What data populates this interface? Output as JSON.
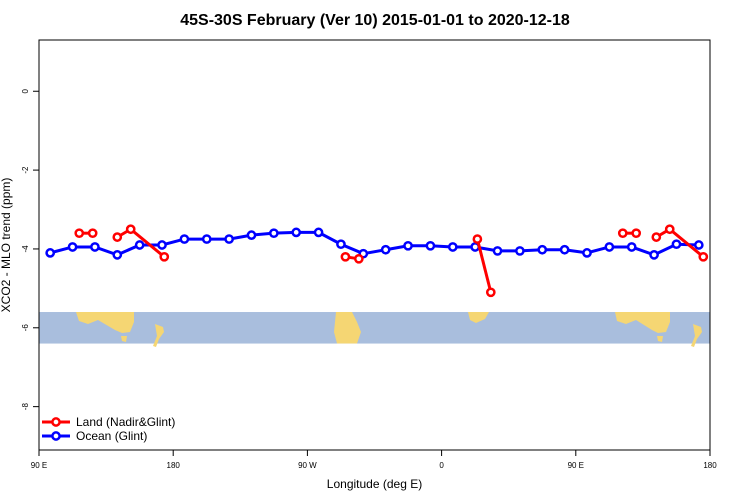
{
  "chart_data": {
    "type": "line",
    "title": "45S-30S February (Ver 10)   2015-01-01 to 2020-12-18",
    "xlabel": "Longitude (deg E)",
    "ylabel": "XCO2 - MLO trend (ppm)",
    "xlim": [
      90,
      390
    ],
    "ylim": [
      -9.1,
      1.3
    ],
    "x_ticks": [
      {
        "value": 90,
        "label": "90 E"
      },
      {
        "value": 150,
        "label": "180"
      },
      {
        "value": 210,
        "label": "90 W"
      },
      {
        "value": 270,
        "label": "0"
      },
      {
        "value": 330,
        "label": "90 E"
      },
      {
        "value": 390,
        "label": "180"
      }
    ],
    "y_ticks": [
      {
        "value": 0,
        "label": "0"
      },
      {
        "value": -2,
        "label": "-2"
      },
      {
        "value": -4,
        "label": "-4"
      },
      {
        "value": -6,
        "label": "-6"
      },
      {
        "value": -8,
        "label": "-8"
      }
    ],
    "series": [
      {
        "name": "Land (Nadir&Glint)",
        "color": "#ff0000",
        "segments": [
          [
            [
              108,
              -3.6
            ],
            [
              114,
              -3.6
            ]
          ],
          [
            [
              125,
              -3.7
            ],
            [
              131,
              -3.5
            ],
            [
              146,
              -4.2
            ]
          ],
          [
            [
              227,
              -4.2
            ],
            [
              233,
              -4.25
            ]
          ],
          [
            [
              286,
              -3.75
            ],
            [
              292,
              -5.1
            ]
          ],
          [
            [
              351,
              -3.6
            ],
            [
              357,
              -3.6
            ]
          ],
          [
            [
              366,
              -3.7
            ],
            [
              372,
              -3.5
            ],
            [
              387,
              -4.2
            ]
          ]
        ]
      },
      {
        "name": "Ocean (Glint)",
        "color": "#0000ff",
        "segments": [
          [
            [
              95,
              -4.1
            ],
            [
              105,
              -3.95
            ],
            [
              115,
              -3.95
            ],
            [
              125,
              -4.15
            ],
            [
              135,
              -3.9
            ],
            [
              145,
              -3.9
            ],
            [
              155,
              -3.75
            ],
            [
              165,
              -3.75
            ],
            [
              175,
              -3.75
            ],
            [
              185,
              -3.65
            ],
            [
              195,
              -3.6
            ],
            [
              205,
              -3.58
            ],
            [
              215,
              -3.58
            ],
            [
              225,
              -3.88
            ],
            [
              235,
              -4.12
            ],
            [
              245,
              -4.02
            ],
            [
              255,
              -3.92
            ],
            [
              265,
              -3.92
            ],
            [
              275,
              -3.95
            ],
            [
              285,
              -3.95
            ],
            [
              295,
              -4.05
            ],
            [
              305,
              -4.05
            ],
            [
              315,
              -4.02
            ],
            [
              325,
              -4.02
            ],
            [
              335,
              -4.1
            ],
            [
              345,
              -3.95
            ],
            [
              355,
              -3.95
            ],
            [
              365,
              -4.15
            ],
            [
              375,
              -3.88
            ],
            [
              385,
              -3.9
            ]
          ]
        ]
      }
    ],
    "legend": {
      "position": "bottom-left"
    },
    "grid": false,
    "map_strip": {
      "ocean_color": "#a9bedd",
      "land_color": "#f5d673",
      "y_range": [
        -6.4,
        -5.6
      ]
    }
  }
}
